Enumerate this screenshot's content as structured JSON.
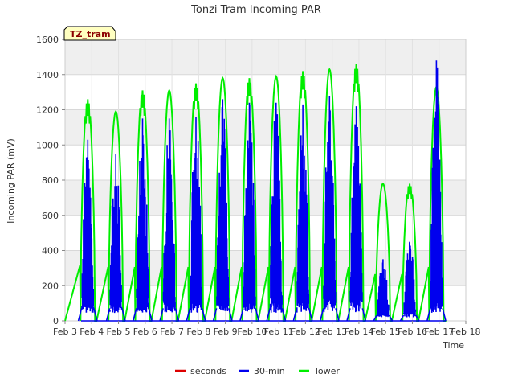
{
  "colors": {
    "seconds": "#dd0000",
    "30-min": "#0000ee",
    "Tower": "#00ee00",
    "band": "#efefef",
    "badge_fill": "#ffffc0"
  },
  "chart_data": {
    "type": "line",
    "title": "Tonzi Tram Incoming PAR",
    "xlabel": "Time",
    "ylabel": "Incoming PAR (mV)",
    "badge": "TZ_tram",
    "xlim": [
      3,
      18
    ],
    "ylim": [
      0,
      1600
    ],
    "x_ticks": [
      "Feb 3",
      "Feb 4",
      "Feb 5",
      "Feb 6",
      "Feb 7",
      "Feb 8",
      "Feb 9",
      "Feb 10",
      "Feb 11",
      "Feb 12",
      "Feb 13",
      "Feb 14",
      "Feb 15",
      "Feb 16",
      "Feb 17",
      "Feb 18"
    ],
    "y_ticks": [
      0,
      200,
      400,
      600,
      800,
      1000,
      1200,
      1400,
      1600
    ],
    "grid": true,
    "legend_position": "bottom",
    "series": [
      {
        "name": "seconds",
        "values": []
      },
      {
        "name": "30-min",
        "daily_peaks": [
          {
            "day": 3.85,
            "peak": 1030
          },
          {
            "day": 4.9,
            "peak": 950
          },
          {
            "day": 5.9,
            "peak": 1150
          },
          {
            "day": 6.9,
            "peak": 1150
          },
          {
            "day": 7.9,
            "peak": 1160
          },
          {
            "day": 8.9,
            "peak": 1260
          },
          {
            "day": 9.9,
            "peak": 1240
          },
          {
            "day": 10.9,
            "peak": 1240
          },
          {
            "day": 11.9,
            "peak": 1230
          },
          {
            "day": 12.9,
            "peak": 1280
          },
          {
            "day": 13.9,
            "peak": 1220
          },
          {
            "day": 14.9,
            "peak": 350
          },
          {
            "day": 15.9,
            "peak": 450
          },
          {
            "day": 16.9,
            "peak": 1480
          }
        ]
      },
      {
        "name": "Tower",
        "daily_peaks": [
          {
            "day": 3.85,
            "peak": 1260
          },
          {
            "day": 4.9,
            "peak": 1190
          },
          {
            "day": 5.9,
            "peak": 1310
          },
          {
            "day": 6.9,
            "peak": 1310
          },
          {
            "day": 7.9,
            "peak": 1350
          },
          {
            "day": 8.9,
            "peak": 1380
          },
          {
            "day": 9.9,
            "peak": 1380
          },
          {
            "day": 10.9,
            "peak": 1390
          },
          {
            "day": 11.9,
            "peak": 1420
          },
          {
            "day": 12.9,
            "peak": 1430
          },
          {
            "day": 13.9,
            "peak": 1460
          },
          {
            "day": 14.9,
            "peak": 780
          },
          {
            "day": 15.9,
            "peak": 780
          },
          {
            "day": 16.9,
            "peak": 1330
          }
        ]
      }
    ]
  }
}
